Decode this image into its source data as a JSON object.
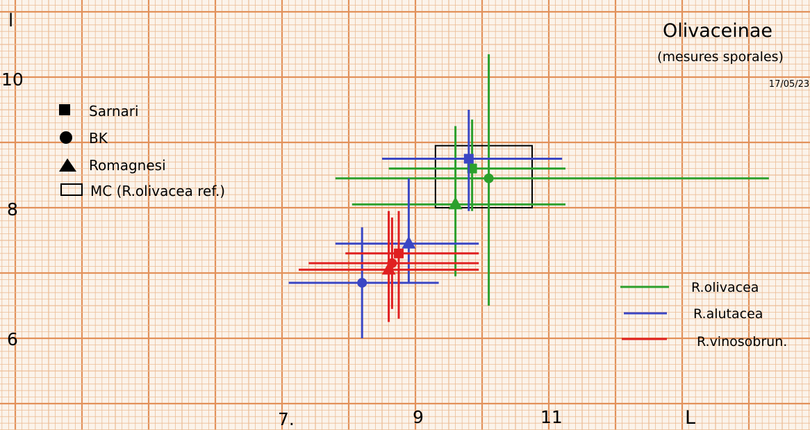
{
  "chart_data": {
    "type": "scatter",
    "title": "Olivaceinae",
    "subtitle": "(mesures sporales)",
    "date": "17/05/23",
    "xlabel": "L",
    "ylabel": "l",
    "x_ticks": [
      "7.",
      "9",
      "11"
    ],
    "y_ticks": [
      "10",
      "8",
      "6"
    ],
    "xlim": [
      4.0,
      15.5
    ],
    "ylim": [
      4.95,
      11.15
    ],
    "grid": true,
    "colors": {
      "grid_major": "#e2915a",
      "grid_minor": "#ecbd96",
      "paper": "#fbf3ea"
    },
    "marker_legend": [
      {
        "shape": "square",
        "label": "Sarnari"
      },
      {
        "shape": "circle",
        "label": "BK"
      },
      {
        "shape": "triangle",
        "label": "Romagnesi"
      },
      {
        "shape": "open-square",
        "label": "MC (R.olivacea ref.)"
      }
    ],
    "series": [
      {
        "name": "R.olivacea",
        "color": "#2ca02c",
        "points": [
          {
            "source": "Sarnari",
            "x": 9.85,
            "y": 8.6,
            "xerr": [
              8.6,
              11.25
            ],
            "yerr": [
              7.95,
              9.35
            ]
          },
          {
            "source": "BK",
            "x": 10.1,
            "y": 8.45,
            "xerr": [
              7.8,
              14.3
            ],
            "yerr": [
              6.5,
              10.35
            ]
          },
          {
            "source": "Romagnesi",
            "x": 9.6,
            "y": 8.05,
            "xerr": [
              8.05,
              11.25
            ],
            "yerr": [
              6.95,
              9.25
            ]
          }
        ]
      },
      {
        "name": "R.alutacea",
        "color": "#3a46c4",
        "points": [
          {
            "source": "Sarnari",
            "x": 9.8,
            "y": 8.75,
            "xerr": [
              8.5,
              11.2
            ],
            "yerr": [
              7.95,
              9.5
            ]
          },
          {
            "source": "BK",
            "x": 8.2,
            "y": 6.85,
            "xerr": [
              7.1,
              9.35
            ],
            "yerr": [
              6.0,
              7.7
            ]
          },
          {
            "source": "Romagnesi",
            "x": 8.9,
            "y": 7.45,
            "xerr": [
              7.8,
              9.95
            ],
            "yerr": [
              6.85,
              8.45
            ]
          }
        ]
      },
      {
        "name": "R.vinosobrun.",
        "color": "#e02020",
        "points": [
          {
            "source": "Sarnari",
            "x": 8.75,
            "y": 7.3,
            "xerr": [
              7.95,
              9.95
            ],
            "yerr": [
              6.3,
              7.95
            ]
          },
          {
            "source": "BK",
            "x": 8.65,
            "y": 7.15,
            "xerr": [
              7.4,
              9.95
            ],
            "yerr": [
              6.45,
              7.85
            ]
          },
          {
            "source": "Romagnesi",
            "x": 8.6,
            "y": 7.05,
            "xerr": [
              7.25,
              9.95
            ],
            "yerr": [
              6.25,
              7.95
            ]
          }
        ]
      }
    ],
    "reference_box": {
      "source": "MC (R.olivacea ref.)",
      "x": [
        9.3,
        10.75
      ],
      "y": [
        8.0,
        8.95
      ]
    }
  }
}
